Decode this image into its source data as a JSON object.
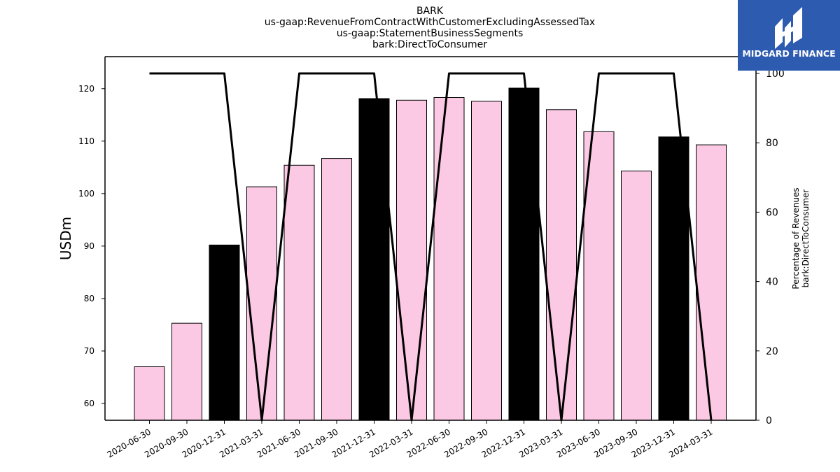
{
  "titles": [
    "BARK",
    "us-gaap:RevenueFromContractWithCustomerExcludingAssessedTax",
    "us-gaap:StatementBusinessSegments",
    "bark:DirectToConsumer"
  ],
  "logo": {
    "text": "MIDGARD FINANCE",
    "background": "#2d5bb0"
  },
  "chart_data": {
    "type": "bar",
    "categories": [
      "2020-06-30",
      "2020-09-30",
      "2020-12-31",
      "2021-03-31",
      "2021-06-30",
      "2021-09-30",
      "2021-12-31",
      "2022-03-31",
      "2022-06-30",
      "2022-09-30",
      "2022-12-31",
      "2023-03-31",
      "2023-06-30",
      "2023-09-30",
      "2023-12-31",
      "2024-03-31"
    ],
    "bar_values": [
      67.0,
      75.3,
      90.2,
      101.3,
      105.4,
      106.7,
      118.1,
      117.8,
      118.3,
      117.6,
      120.1,
      116.0,
      111.8,
      104.3,
      110.8,
      109.3
    ],
    "bar_colors": [
      "#fbc9e4",
      "#fbc9e4",
      "#000000",
      "#fbc9e4",
      "#fbc9e4",
      "#fbc9e4",
      "#000000",
      "#fbc9e4",
      "#fbc9e4",
      "#fbc9e4",
      "#000000",
      "#fbc9e4",
      "#fbc9e4",
      "#fbc9e4",
      "#000000",
      "#fbc9e4"
    ],
    "line_values": [
      100,
      100,
      100,
      0,
      100,
      100,
      100,
      0,
      100,
      100,
      100,
      0,
      100,
      100,
      100,
      0
    ],
    "ylabel": "USDm",
    "ylim": [
      56.8,
      126.1
    ],
    "yticks": [
      60,
      70,
      80,
      90,
      100,
      110,
      120
    ],
    "y2label_lines": [
      "Percentage of Revenues",
      "bark:DirectToConsumer"
    ],
    "y2lim": [
      0,
      100
    ],
    "y2ticks": [
      0,
      20,
      40,
      60,
      80,
      100
    ],
    "grid": false,
    "line_color": "#000000"
  }
}
